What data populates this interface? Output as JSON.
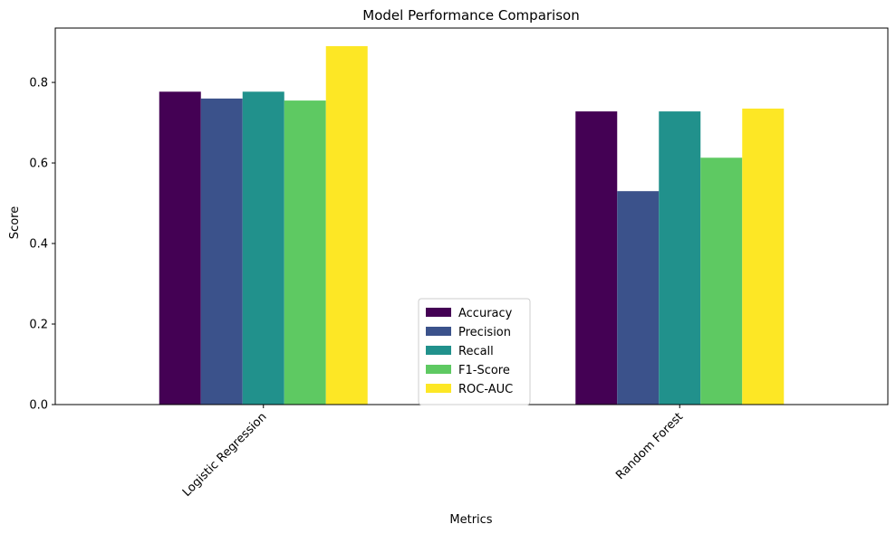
{
  "chart_data": {
    "type": "bar",
    "title": "Model Performance Comparison",
    "xlabel": "Metrics",
    "ylabel": "Score",
    "categories": [
      "Logistic Regression",
      "Random Forest"
    ],
    "series": [
      {
        "name": "Accuracy",
        "color": "#440154",
        "values": [
          0.777,
          0.728
        ]
      },
      {
        "name": "Precision",
        "color": "#3b528b",
        "values": [
          0.76,
          0.53
        ]
      },
      {
        "name": "Recall",
        "color": "#21918c",
        "values": [
          0.777,
          0.728
        ]
      },
      {
        "name": "F1-Score",
        "color": "#5ec962",
        "values": [
          0.755,
          0.613
        ]
      },
      {
        "name": "ROC-AUC",
        "color": "#fde725",
        "values": [
          0.89,
          0.735
        ]
      }
    ],
    "ylim": [
      0,
      0.935
    ],
    "yticks": [
      0.0,
      0.2,
      0.4,
      0.6,
      0.8
    ],
    "ytick_labels": [
      "0.0",
      "0.2",
      "0.4",
      "0.6",
      "0.8"
    ],
    "xtick_rotation": 45,
    "legend": "bottom-center",
    "grid": false
  }
}
